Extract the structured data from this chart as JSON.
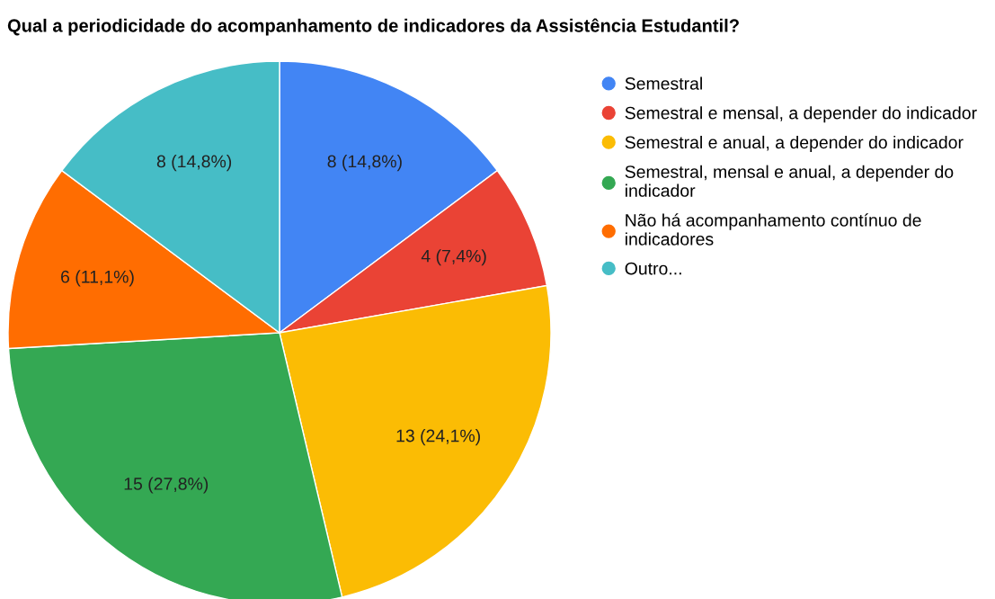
{
  "chart_data": {
    "type": "pie",
    "title": "Qual a periodicidade do acompanhamento de indicadores da Assistência Estudantil?",
    "categories": [
      "Semestral",
      "Semestral e mensal, a depender do indicador",
      "Semestral e anual, a depender do indicador",
      "Semestral, mensal e anual, a depender do indicador",
      "Não há acompanhamento contínuo de indicadores",
      "Outro..."
    ],
    "values": [
      8,
      4,
      13,
      15,
      6,
      8
    ],
    "value_labels": [
      "8 (14,8%)",
      "4 (7,4%)",
      "13 (24,1%)",
      "15 (27,8%)",
      "6 (11,1%)",
      "8 (14,8%)"
    ],
    "colors": [
      "#4285f4",
      "#ea4335",
      "#fbbc04",
      "#34a853",
      "#ff6d01",
      "#46bdc6"
    ],
    "legend": "right"
  }
}
